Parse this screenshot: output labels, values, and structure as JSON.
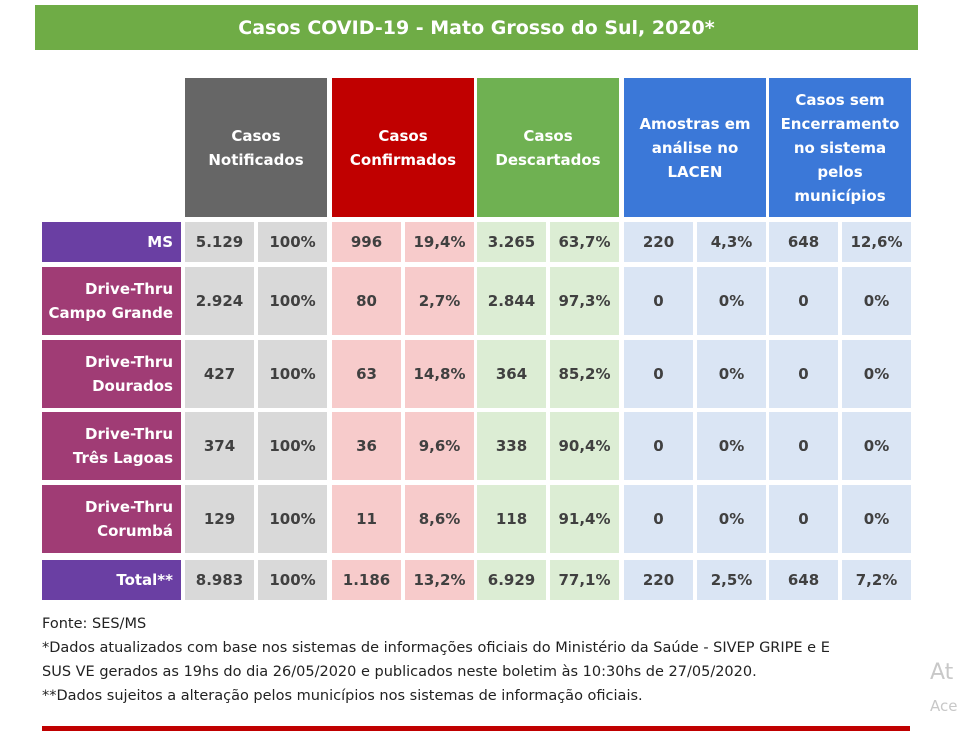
{
  "title": "Casos COVID-19 - Mato Grosso do Sul, 2020*",
  "table": {
    "headers": [
      [
        "Casos",
        "Notificados"
      ],
      [
        "Casos",
        "Confirmados"
      ],
      [
        "Casos",
        "Descartados"
      ],
      [
        "Amostras em",
        "análise no",
        "LACEN"
      ],
      [
        "Casos sem",
        "Encerramento",
        "no sistema",
        "pelos",
        "municípios"
      ]
    ],
    "rows": [
      {
        "label": [
          "MS"
        ],
        "cells": [
          "5.129",
          "100%",
          "996",
          "19,4%",
          "3.265",
          "63,7%",
          "220",
          "4,3%",
          "648",
          "12,6%"
        ]
      },
      {
        "label": [
          "Drive-Thru",
          "Campo Grande"
        ],
        "cells": [
          "2.924",
          "100%",
          "80",
          "2,7%",
          "2.844",
          "97,3%",
          "0",
          "0%",
          "0",
          "0%"
        ]
      },
      {
        "label": [
          "Drive-Thru",
          "Dourados"
        ],
        "cells": [
          "427",
          "100%",
          "63",
          "14,8%",
          "364",
          "85,2%",
          "0",
          "0%",
          "0",
          "0%"
        ]
      },
      {
        "label": [
          "Drive-Thru",
          "Três Lagoas"
        ],
        "cells": [
          "374",
          "100%",
          "36",
          "9,6%",
          "338",
          "90,4%",
          "0",
          "0%",
          "0",
          "0%"
        ]
      },
      {
        "label": [
          "Drive-Thru",
          "Corumbá"
        ],
        "cells": [
          "129",
          "100%",
          "11",
          "8,6%",
          "118",
          "91,4%",
          "0",
          "0%",
          "0",
          "0%"
        ]
      },
      {
        "label": [
          "Total**"
        ],
        "cells": [
          "8.983",
          "100%",
          "1.186",
          "13,2%",
          "6.929",
          "77,1%",
          "220",
          "2,5%",
          "648",
          "7,2%"
        ]
      }
    ]
  },
  "notes": [
    [
      "Fonte: SES/MS"
    ],
    [
      "*Dados atualizados com base nos sistemas de informações oficiais do Ministério da Saúde - SIVEP GRIPE e E",
      "SUS VE gerados as 19hs do dia 26/05/2020 e publicados neste boletim às 10:30hs de 27/05/2020."
    ],
    [
      "**Dados sujeitos a alteração pelos municípios nos sistemas de informação oficiais."
    ]
  ],
  "watermark": [
    "At",
    "Ace"
  ]
}
